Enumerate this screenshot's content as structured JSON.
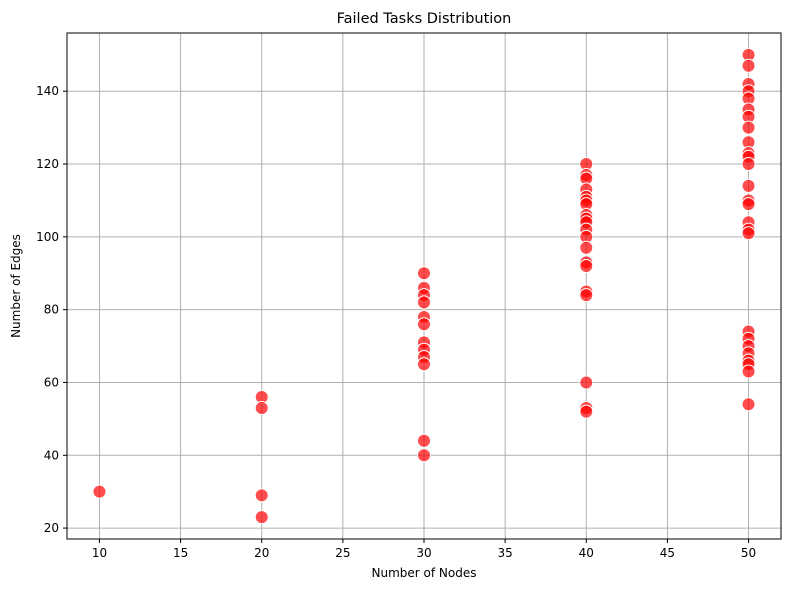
{
  "chart_data": {
    "type": "scatter",
    "title": "Failed Tasks Distribution",
    "xlabel": "Number of Nodes",
    "ylabel": "Number of Edges",
    "xlim": [
      8,
      52
    ],
    "ylim": [
      17,
      156
    ],
    "xticks": [
      10,
      15,
      20,
      25,
      30,
      35,
      40,
      45,
      50
    ],
    "yticks": [
      20,
      40,
      60,
      80,
      100,
      120,
      140
    ],
    "grid": true,
    "legend": "none",
    "marker_color": "#ff0000",
    "marker_edge_color": "#ffffff",
    "series": [
      {
        "points": [
          {
            "x": 10,
            "y": 30
          },
          {
            "x": 20,
            "y": 56
          },
          {
            "x": 20,
            "y": 53
          },
          {
            "x": 20,
            "y": 29
          },
          {
            "x": 20,
            "y": 23
          },
          {
            "x": 30,
            "y": 90
          },
          {
            "x": 30,
            "y": 86
          },
          {
            "x": 30,
            "y": 84
          },
          {
            "x": 30,
            "y": 82
          },
          {
            "x": 30,
            "y": 78
          },
          {
            "x": 30,
            "y": 76
          },
          {
            "x": 30,
            "y": 71
          },
          {
            "x": 30,
            "y": 69
          },
          {
            "x": 30,
            "y": 67
          },
          {
            "x": 30,
            "y": 65
          },
          {
            "x": 30,
            "y": 44
          },
          {
            "x": 30,
            "y": 40
          },
          {
            "x": 40,
            "y": 120
          },
          {
            "x": 40,
            "y": 117
          },
          {
            "x": 40,
            "y": 116
          },
          {
            "x": 40,
            "y": 113
          },
          {
            "x": 40,
            "y": 111
          },
          {
            "x": 40,
            "y": 110
          },
          {
            "x": 40,
            "y": 109
          },
          {
            "x": 40,
            "y": 106
          },
          {
            "x": 40,
            "y": 105
          },
          {
            "x": 40,
            "y": 104
          },
          {
            "x": 40,
            "y": 102
          },
          {
            "x": 40,
            "y": 100
          },
          {
            "x": 40,
            "y": 97
          },
          {
            "x": 40,
            "y": 93
          },
          {
            "x": 40,
            "y": 92
          },
          {
            "x": 40,
            "y": 85
          },
          {
            "x": 40,
            "y": 84
          },
          {
            "x": 40,
            "y": 60
          },
          {
            "x": 40,
            "y": 53
          },
          {
            "x": 40,
            "y": 52
          },
          {
            "x": 50,
            "y": 150
          },
          {
            "x": 50,
            "y": 147
          },
          {
            "x": 50,
            "y": 142
          },
          {
            "x": 50,
            "y": 140
          },
          {
            "x": 50,
            "y": 138
          },
          {
            "x": 50,
            "y": 135
          },
          {
            "x": 50,
            "y": 133
          },
          {
            "x": 50,
            "y": 130
          },
          {
            "x": 50,
            "y": 126
          },
          {
            "x": 50,
            "y": 123
          },
          {
            "x": 50,
            "y": 122
          },
          {
            "x": 50,
            "y": 120
          },
          {
            "x": 50,
            "y": 114
          },
          {
            "x": 50,
            "y": 110
          },
          {
            "x": 50,
            "y": 109
          },
          {
            "x": 50,
            "y": 104
          },
          {
            "x": 50,
            "y": 102
          },
          {
            "x": 50,
            "y": 101
          },
          {
            "x": 50,
            "y": 74
          },
          {
            "x": 50,
            "y": 72
          },
          {
            "x": 50,
            "y": 70
          },
          {
            "x": 50,
            "y": 68
          },
          {
            "x": 50,
            "y": 66
          },
          {
            "x": 50,
            "y": 65
          },
          {
            "x": 50,
            "y": 63
          },
          {
            "x": 50,
            "y": 54
          }
        ]
      }
    ]
  }
}
